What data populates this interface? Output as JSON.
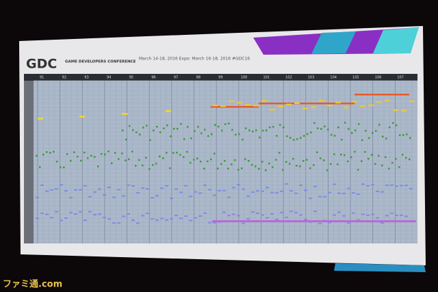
{
  "header": {
    "logo": "GDC",
    "conference": "GAME DEVELOPERS CONFERENCE",
    "dates": "March 14-18, 2016  Expo: March 16-18, 2016  #GDC16"
  },
  "ruler": {
    "labels": [
      "91",
      "92",
      "93",
      "94",
      "95",
      "96",
      "97",
      "98",
      "99",
      "100",
      "101",
      "102",
      "103",
      "104",
      "105",
      "106",
      "107"
    ]
  },
  "watermark": "ファミ通.com"
}
